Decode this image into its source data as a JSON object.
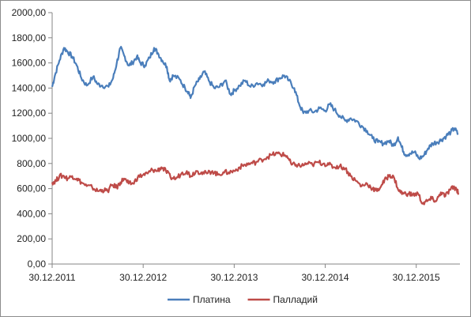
{
  "chart_data": {
    "type": "line",
    "title": "",
    "xlabel": "",
    "ylabel": "",
    "ylim": [
      0,
      2000
    ],
    "y_ticks": [
      "0,00",
      "200,00",
      "400,00",
      "600,00",
      "800,00",
      "1000,00",
      "1200,00",
      "1400,00",
      "1600,00",
      "1800,00",
      "2000,00"
    ],
    "x_ticks": [
      "30.12.2011",
      "30.12.2012",
      "30.12.2013",
      "30.12.2014",
      "30.12.2015"
    ],
    "x_tick_positions": [
      2012.0,
      2013.0,
      2014.0,
      2015.0,
      2016.0
    ],
    "xlim": [
      2012.0,
      2016.48
    ],
    "grid": false,
    "legend_position": "bottom",
    "x_unit": "year",
    "series": [
      {
        "name": "Платина",
        "color": "#4a7ebb",
        "points": [
          [
            2012.0,
            1410
          ],
          [
            2012.03,
            1500
          ],
          [
            2012.08,
            1620
          ],
          [
            2012.13,
            1720
          ],
          [
            2012.17,
            1690
          ],
          [
            2012.22,
            1650
          ],
          [
            2012.27,
            1580
          ],
          [
            2012.32,
            1480
          ],
          [
            2012.38,
            1420
          ],
          [
            2012.45,
            1490
          ],
          [
            2012.5,
            1430
          ],
          [
            2012.55,
            1420
          ],
          [
            2012.62,
            1410
          ],
          [
            2012.67,
            1480
          ],
          [
            2012.71,
            1600
          ],
          [
            2012.75,
            1720
          ],
          [
            2012.79,
            1660
          ],
          [
            2012.84,
            1580
          ],
          [
            2012.88,
            1600
          ],
          [
            2012.93,
            1650
          ],
          [
            2012.97,
            1600
          ],
          [
            2013.02,
            1580
          ],
          [
            2013.07,
            1640
          ],
          [
            2013.12,
            1720
          ],
          [
            2013.16,
            1680
          ],
          [
            2013.21,
            1620
          ],
          [
            2013.26,
            1570
          ],
          [
            2013.29,
            1460
          ],
          [
            2013.33,
            1500
          ],
          [
            2013.4,
            1470
          ],
          [
            2013.46,
            1400
          ],
          [
            2013.5,
            1370
          ],
          [
            2013.52,
            1320
          ],
          [
            2013.57,
            1420
          ],
          [
            2013.62,
            1470
          ],
          [
            2013.67,
            1530
          ],
          [
            2013.72,
            1460
          ],
          [
            2013.78,
            1400
          ],
          [
            2013.84,
            1410
          ],
          [
            2013.9,
            1460
          ],
          [
            2013.96,
            1350
          ],
          [
            2014.0,
            1380
          ],
          [
            2014.06,
            1420
          ],
          [
            2014.12,
            1460
          ],
          [
            2014.18,
            1410
          ],
          [
            2014.25,
            1440
          ],
          [
            2014.32,
            1430
          ],
          [
            2014.38,
            1460
          ],
          [
            2014.44,
            1450
          ],
          [
            2014.5,
            1480
          ],
          [
            2014.55,
            1500
          ],
          [
            2014.6,
            1460
          ],
          [
            2014.66,
            1400
          ],
          [
            2014.71,
            1280
          ],
          [
            2014.76,
            1200
          ],
          [
            2014.82,
            1220
          ],
          [
            2014.88,
            1210
          ],
          [
            2014.94,
            1240
          ],
          [
            2015.0,
            1220
          ],
          [
            2015.05,
            1270
          ],
          [
            2015.1,
            1230
          ],
          [
            2015.16,
            1180
          ],
          [
            2015.22,
            1140
          ],
          [
            2015.28,
            1160
          ],
          [
            2015.34,
            1140
          ],
          [
            2015.4,
            1100
          ],
          [
            2015.46,
            1060
          ],
          [
            2015.52,
            1000
          ],
          [
            2015.58,
            970
          ],
          [
            2015.64,
            960
          ],
          [
            2015.7,
            980
          ],
          [
            2015.75,
            940
          ],
          [
            2015.8,
            1010
          ],
          [
            2015.84,
            930
          ],
          [
            2015.88,
            870
          ],
          [
            2015.93,
            880
          ],
          [
            2015.98,
            890
          ],
          [
            2016.03,
            840
          ],
          [
            2016.08,
            860
          ],
          [
            2016.13,
            920
          ],
          [
            2016.18,
            960
          ],
          [
            2016.23,
            970
          ],
          [
            2016.28,
            990
          ],
          [
            2016.33,
            1020
          ],
          [
            2016.38,
            1050
          ],
          [
            2016.42,
            1080
          ],
          [
            2016.46,
            1030
          ]
        ]
      },
      {
        "name": "Палладий",
        "color": "#be4b48",
        "points": [
          [
            2012.0,
            650
          ],
          [
            2012.04,
            660
          ],
          [
            2012.08,
            700
          ],
          [
            2012.13,
            700
          ],
          [
            2012.17,
            680
          ],
          [
            2012.22,
            700
          ],
          [
            2012.27,
            680
          ],
          [
            2012.32,
            650
          ],
          [
            2012.38,
            620
          ],
          [
            2012.44,
            610
          ],
          [
            2012.5,
            580
          ],
          [
            2012.55,
            590
          ],
          [
            2012.61,
            580
          ],
          [
            2012.66,
            630
          ],
          [
            2012.71,
            610
          ],
          [
            2012.75,
            650
          ],
          [
            2012.79,
            680
          ],
          [
            2012.84,
            640
          ],
          [
            2012.89,
            640
          ],
          [
            2012.94,
            690
          ],
          [
            2013.0,
            710
          ],
          [
            2013.05,
            720
          ],
          [
            2013.1,
            750
          ],
          [
            2013.15,
            740
          ],
          [
            2013.2,
            770
          ],
          [
            2013.25,
            740
          ],
          [
            2013.3,
            690
          ],
          [
            2013.36,
            680
          ],
          [
            2013.42,
            720
          ],
          [
            2013.48,
            740
          ],
          [
            2013.52,
            700
          ],
          [
            2013.58,
            740
          ],
          [
            2013.64,
            730
          ],
          [
            2013.7,
            720
          ],
          [
            2013.76,
            740
          ],
          [
            2013.82,
            710
          ],
          [
            2013.88,
            730
          ],
          [
            2013.94,
            730
          ],
          [
            2014.0,
            740
          ],
          [
            2014.06,
            770
          ],
          [
            2014.12,
            790
          ],
          [
            2014.18,
            800
          ],
          [
            2014.24,
            810
          ],
          [
            2014.3,
            830
          ],
          [
            2014.36,
            850
          ],
          [
            2014.42,
            870
          ],
          [
            2014.48,
            880
          ],
          [
            2014.53,
            870
          ],
          [
            2014.58,
            860
          ],
          [
            2014.63,
            790
          ],
          [
            2014.68,
            790
          ],
          [
            2014.74,
            780
          ],
          [
            2014.8,
            800
          ],
          [
            2014.86,
            790
          ],
          [
            2014.92,
            810
          ],
          [
            2014.98,
            800
          ],
          [
            2015.04,
            790
          ],
          [
            2015.1,
            770
          ],
          [
            2015.16,
            780
          ],
          [
            2015.22,
            760
          ],
          [
            2015.28,
            700
          ],
          [
            2015.34,
            660
          ],
          [
            2015.4,
            620
          ],
          [
            2015.46,
            640
          ],
          [
            2015.52,
            600
          ],
          [
            2015.57,
            580
          ],
          [
            2015.62,
            630
          ],
          [
            2015.67,
            680
          ],
          [
            2015.71,
            710
          ],
          [
            2015.76,
            680
          ],
          [
            2015.81,
            580
          ],
          [
            2015.86,
            560
          ],
          [
            2015.91,
            560
          ],
          [
            2015.96,
            550
          ],
          [
            2016.02,
            560
          ],
          [
            2016.07,
            480
          ],
          [
            2016.12,
            500
          ],
          [
            2016.17,
            520
          ],
          [
            2016.22,
            500
          ],
          [
            2016.27,
            570
          ],
          [
            2016.32,
            540
          ],
          [
            2016.37,
            590
          ],
          [
            2016.41,
            610
          ],
          [
            2016.44,
            600
          ],
          [
            2016.47,
            560
          ]
        ]
      }
    ]
  }
}
